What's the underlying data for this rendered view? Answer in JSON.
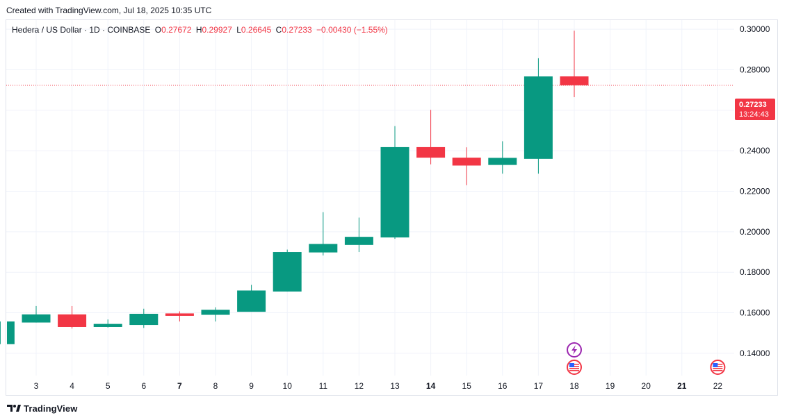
{
  "header": {
    "created_text": "Created with TradingView.com, Jul 18, 2025 10:35 UTC"
  },
  "legend": {
    "symbol": "Hedera / US Dollar · 1D · COINBASE",
    "o_label": "O",
    "o_value": "0.27672",
    "h_label": "H",
    "h_value": "0.29927",
    "l_label": "L",
    "l_value": "0.26645",
    "c_label": "C",
    "c_value": "0.27233",
    "change": "−0.00430 (−1.55%)"
  },
  "price_tag": {
    "price": "0.27233",
    "countdown": "13:24:43"
  },
  "footer": {
    "brand": "TradingView"
  },
  "colors": {
    "up": "#089981",
    "down": "#f23645",
    "grid": "#f0f3fa",
    "text": "#131722"
  },
  "icons": [
    "lightning-event-icon",
    "us-flag-event-icon",
    "us-flag-event-icon"
  ],
  "chart_data": {
    "type": "candlestick",
    "x_ticks": [
      "3",
      "4",
      "5",
      "6",
      "7",
      "8",
      "9",
      "10",
      "11",
      "12",
      "13",
      "14",
      "15",
      "16",
      "17",
      "18",
      "19",
      "20",
      "21",
      "22"
    ],
    "bold_ticks": [
      "7",
      "14",
      "21"
    ],
    "y_ticks": [
      "0.14000",
      "0.16000",
      "0.18000",
      "0.20000",
      "0.22000",
      "0.24000",
      "0.26000",
      "0.28000",
      "0.30000"
    ],
    "ylim": [
      0.129,
      0.3045
    ],
    "last_price": 0.27233,
    "candles": [
      {
        "day": 2,
        "open": 0.1445,
        "high": 0.1557,
        "low": 0.1445,
        "close": 0.1557
      },
      {
        "day": 3,
        "open": 0.1552,
        "high": 0.1633,
        "low": 0.1552,
        "close": 0.1592
      },
      {
        "day": 4,
        "open": 0.1592,
        "high": 0.1633,
        "low": 0.1522,
        "close": 0.153
      },
      {
        "day": 5,
        "open": 0.153,
        "high": 0.1567,
        "low": 0.1527,
        "close": 0.1545
      },
      {
        "day": 6,
        "open": 0.154,
        "high": 0.162,
        "low": 0.1525,
        "close": 0.1595
      },
      {
        "day": 7,
        "open": 0.1597,
        "high": 0.1607,
        "low": 0.1557,
        "close": 0.1585
      },
      {
        "day": 8,
        "open": 0.159,
        "high": 0.1627,
        "low": 0.1557,
        "close": 0.1615
      },
      {
        "day": 9,
        "open": 0.1605,
        "high": 0.1738,
        "low": 0.1605,
        "close": 0.171
      },
      {
        "day": 10,
        "open": 0.1705,
        "high": 0.1912,
        "low": 0.1705,
        "close": 0.19
      },
      {
        "day": 11,
        "open": 0.1898,
        "high": 0.2097,
        "low": 0.1883,
        "close": 0.194
      },
      {
        "day": 12,
        "open": 0.1935,
        "high": 0.207,
        "low": 0.19,
        "close": 0.1975
      },
      {
        "day": 13,
        "open": 0.1972,
        "high": 0.2522,
        "low": 0.1965,
        "close": 0.2418
      },
      {
        "day": 14,
        "open": 0.2418,
        "high": 0.2602,
        "low": 0.2333,
        "close": 0.2366
      },
      {
        "day": 15,
        "open": 0.2366,
        "high": 0.2417,
        "low": 0.223,
        "close": 0.2327
      },
      {
        "day": 16,
        "open": 0.233,
        "high": 0.2447,
        "low": 0.2287,
        "close": 0.2365
      },
      {
        "day": 17,
        "open": 0.236,
        "high": 0.2857,
        "low": 0.2287,
        "close": 0.2767
      },
      {
        "day": 18,
        "open": 0.27672,
        "high": 0.29927,
        "low": 0.26645,
        "close": 0.27233
      }
    ]
  }
}
